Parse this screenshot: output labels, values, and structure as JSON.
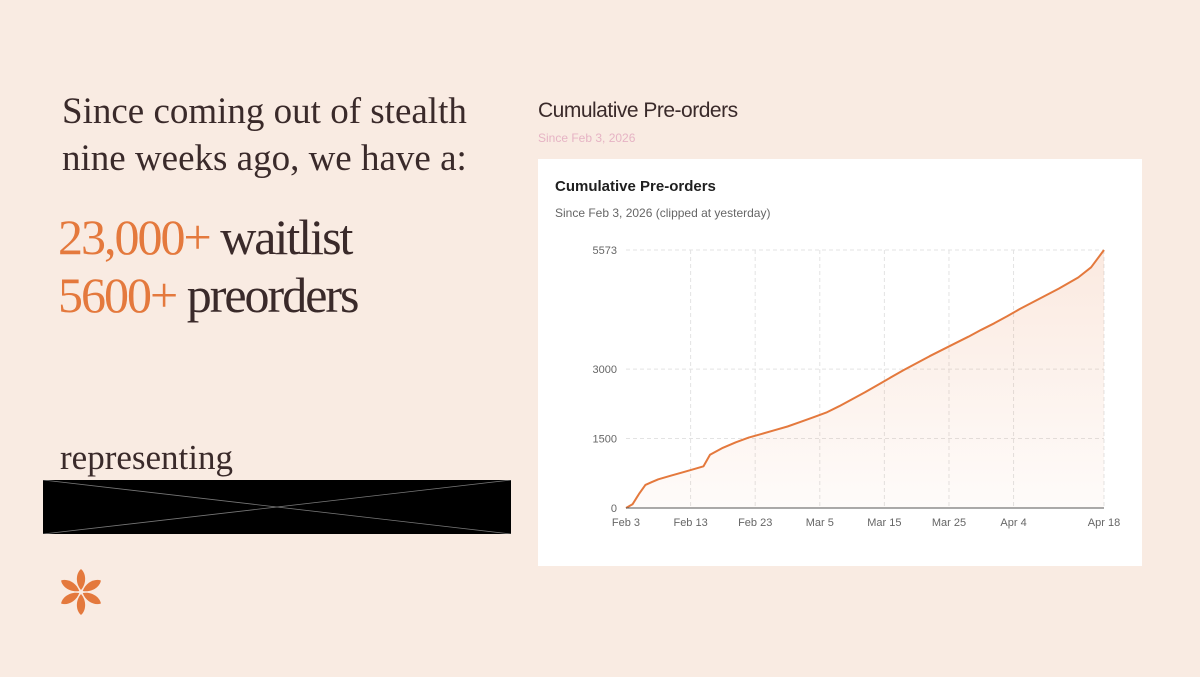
{
  "headline": "Since coming out of stealth nine weeks ago, we have a:",
  "stats": [
    {
      "number": "23,000+",
      "label": " waitlist"
    },
    {
      "number": "5600+",
      "label": " preorders"
    }
  ],
  "representing": "representing",
  "colors": {
    "background": "#f9ebe2",
    "accent": "#e4793d",
    "text": "#3a2a2a",
    "redaction": "#000000"
  },
  "logo_icon": "flower-logo-icon",
  "outer_title": "Cumulative Pre-orders",
  "outer_subtitle": "Since Feb 3, 2026",
  "chart_data": {
    "type": "area",
    "title": "Cumulative Pre-orders",
    "subtitle": "Since Feb 3, 2026 (clipped at yesterday)",
    "xlabel": "",
    "ylabel": "",
    "x_ticks": [
      "Feb 3",
      "Feb 13",
      "Feb 23",
      "Mar 5",
      "Mar 15",
      "Mar 25",
      "Apr 4",
      "Apr 18"
    ],
    "y_ticks": [
      0,
      1500,
      3000,
      5573
    ],
    "ylim": [
      0,
      5573
    ],
    "grid": true,
    "color": "#e4793d",
    "series": [
      {
        "x": [
          "2026-02-03",
          "2026-02-04",
          "2026-02-05",
          "2026-02-06",
          "2026-02-07",
          "2026-02-08",
          "2026-02-10",
          "2026-02-12",
          "2026-02-14",
          "2026-02-15",
          "2026-02-16",
          "2026-02-18",
          "2026-02-20",
          "2026-02-22",
          "2026-02-24",
          "2026-02-26",
          "2026-02-28",
          "2026-03-02",
          "2026-03-04",
          "2026-03-06",
          "2026-03-08",
          "2026-03-10",
          "2026-03-12",
          "2026-03-14",
          "2026-03-16",
          "2026-03-18",
          "2026-03-20",
          "2026-03-22",
          "2026-03-24",
          "2026-03-26",
          "2026-03-28",
          "2026-03-30",
          "2026-04-01",
          "2026-04-03",
          "2026-04-05",
          "2026-04-08",
          "2026-04-11",
          "2026-04-14",
          "2026-04-16",
          "2026-04-18"
        ],
        "values": [
          0,
          80,
          300,
          500,
          560,
          620,
          700,
          780,
          860,
          900,
          1150,
          1300,
          1420,
          1520,
          1600,
          1680,
          1760,
          1860,
          1960,
          2060,
          2200,
          2350,
          2500,
          2660,
          2820,
          2980,
          3130,
          3280,
          3420,
          3560,
          3700,
          3850,
          3990,
          4140,
          4300,
          4520,
          4740,
          4980,
          5200,
          5573
        ]
      }
    ]
  }
}
